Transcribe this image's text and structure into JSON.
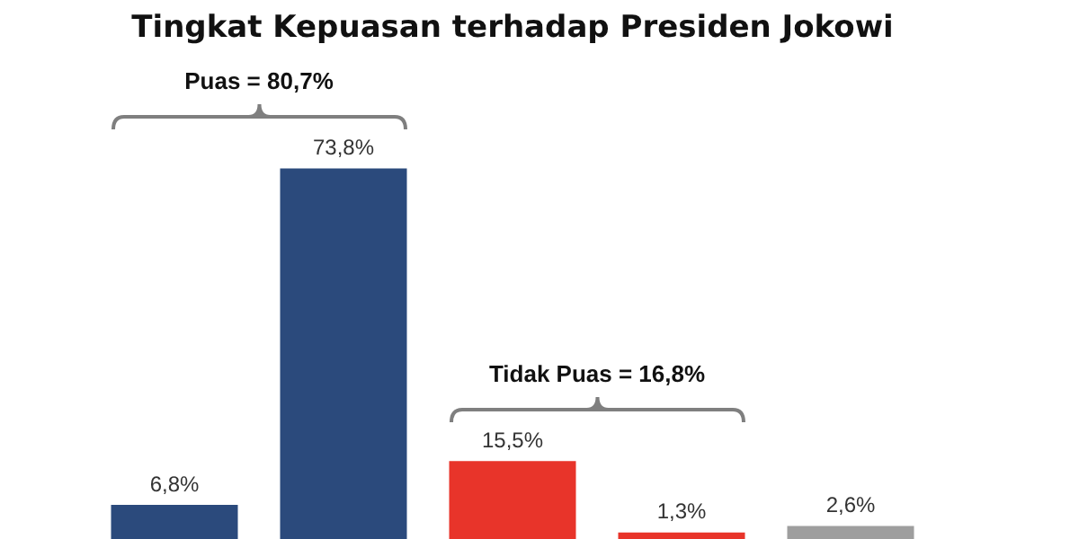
{
  "chart_data": {
    "type": "bar",
    "title": "Tingkat Kepuasan terhadap Presiden Jokowi",
    "categories": [
      null,
      null,
      null,
      null,
      null
    ],
    "values": [
      6.8,
      73.8,
      15.5,
      1.3,
      2.6
    ],
    "colors": [
      "#2b4a7c",
      "#2b4a7c",
      "#e8342a",
      "#e8342a",
      "#9e9e9e"
    ],
    "value_labels": [
      "6,8%",
      "73,8%",
      "15,5%",
      "1,3%",
      "2,6%"
    ],
    "annotations": [
      "Puas = 80,7%",
      "Tidak Puas = 16,8%"
    ]
  }
}
